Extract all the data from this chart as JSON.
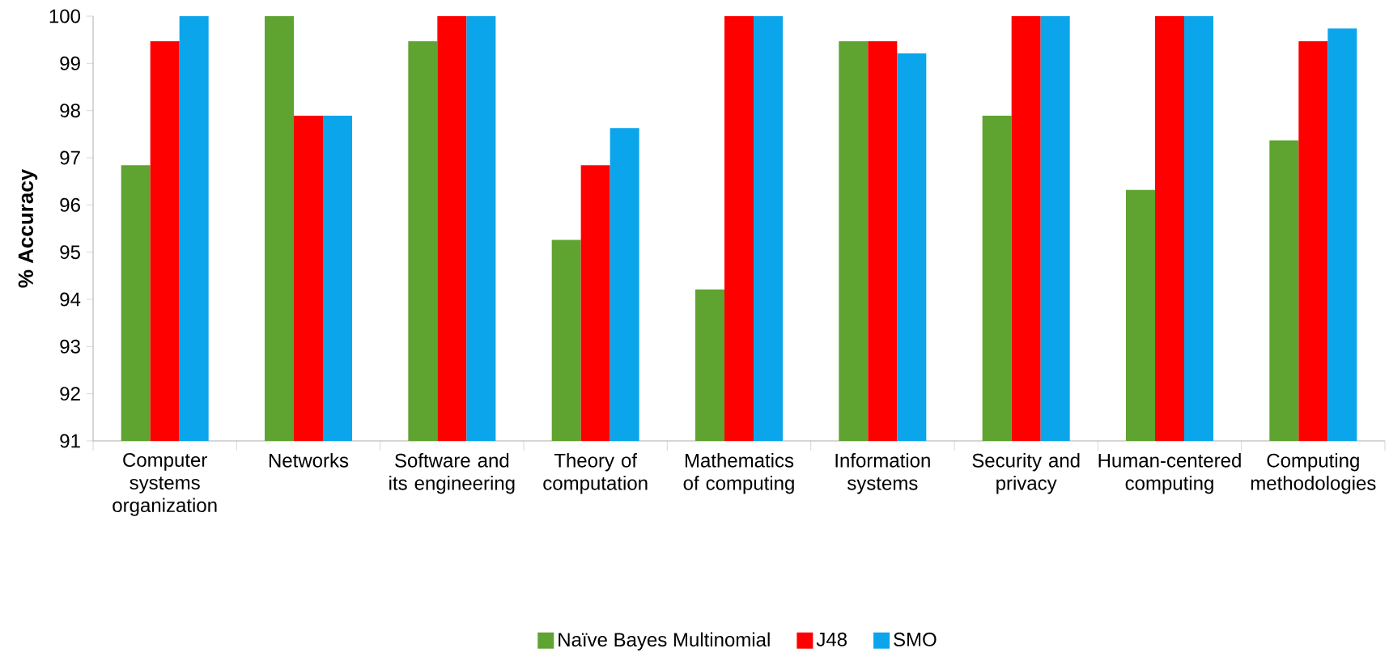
{
  "chart_data": {
    "type": "bar",
    "ylabel": "% Accuracy",
    "categories": [
      "Computer systems organization",
      "Networks",
      "Software and its engineering",
      "Theory of computation",
      "Mathematics of computing",
      "Information systems",
      "Security and privacy",
      "Human-centered computing",
      "Computing methodologies"
    ],
    "series": [
      {
        "name": "Naïve Bayes Multinomial",
        "color": "#5fa330",
        "values": [
          96.84,
          100,
          99.47,
          95.26,
          94.21,
          99.47,
          97.89,
          96.32,
          97.37
        ]
      },
      {
        "name": "J48",
        "color": "#ff0000",
        "values": [
          99.47,
          97.89,
          100,
          96.84,
          100,
          99.47,
          100,
          100,
          99.47
        ]
      },
      {
        "name": "SMO",
        "color": "#0ba5ec",
        "values": [
          100,
          97.89,
          100,
          97.63,
          100,
          99.21,
          100,
          100,
          99.74
        ]
      }
    ],
    "ylim": [
      91,
      100
    ],
    "yticks": [
      91,
      92,
      93,
      94,
      95,
      96,
      97,
      98,
      99,
      100
    ],
    "legend": "bottom"
  }
}
